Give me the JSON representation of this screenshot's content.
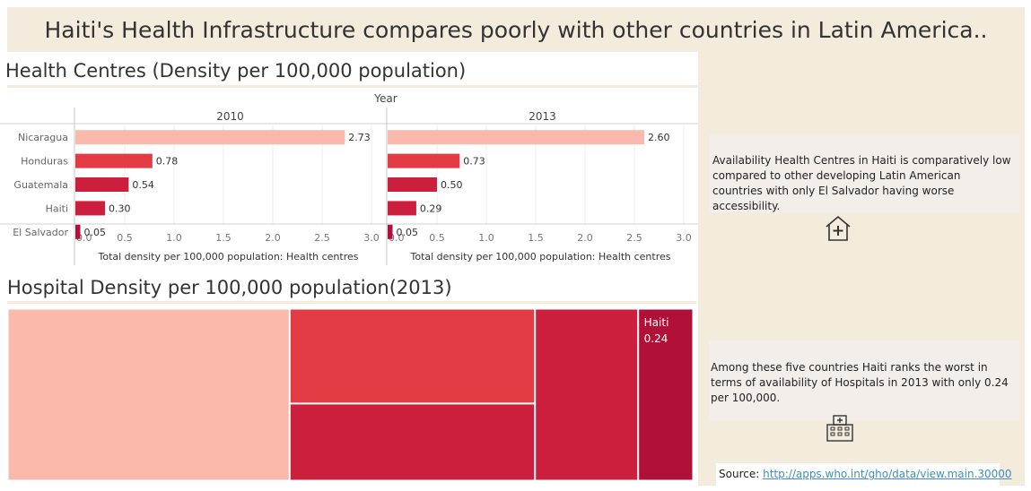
{
  "title": "Haiti's Health Infrastructure compares poorly with other countries in Latin America..",
  "health_centres": {
    "heading": "Health Centres (Density per 100,000 population)",
    "column_header": "Year"
  },
  "hospital": {
    "heading": "Hospital Density per 100,000 population(2013)"
  },
  "notes": {
    "health_centres": "Availability Health Centres in Haiti is comparatively low compared to other developing Latin American countries with only El Salvador having worse accessibility.",
    "hospitals": "Among these five countries Haiti ranks the worst in terms of availability of Hospitals in 2013 with only 0.24 per 100,000."
  },
  "source": {
    "label": "Source:",
    "url_text": "http://apps.who.int/gho/data/view.main.30000"
  },
  "icons": {
    "health_centre": "house-plus-icon",
    "hospital": "hospital-building-icon"
  },
  "colors": {
    "palette": [
      "#fbb9ab",
      "#e33b43",
      "#cb1f3d",
      "#b11038"
    ],
    "panel": "#f3ebdc"
  },
  "chart_data": [
    {
      "type": "bar",
      "orientation": "horizontal",
      "categories": [
        "Nicaragua",
        "Honduras",
        "Guatemala",
        "Haiti",
        "El Salvador"
      ],
      "facet_label": "Year",
      "panels": [
        {
          "name": "2010",
          "values": [
            2.73,
            0.78,
            0.54,
            0.3,
            0.05
          ],
          "labels": [
            "2.73",
            "0.78",
            "0.54",
            "0.30",
            "0.05"
          ]
        },
        {
          "name": "2013",
          "values": [
            2.6,
            0.73,
            0.5,
            0.29,
            0.05
          ],
          "labels": [
            "2.60",
            "0.73",
            "0.50",
            "0.29",
            "0.05"
          ]
        }
      ],
      "xlabel": "Total density per 100,000 population: Health centres",
      "xlim": [
        0,
        3.0
      ],
      "ticks": [
        "0.0",
        "0.5",
        "1.0",
        "1.5",
        "2.0",
        "2.5",
        "3.0"
      ],
      "grid": true
    },
    {
      "type": "treemap",
      "title": "Hospital Density per 100,000 population(2013)",
      "values": [
        1.23,
        0.59,
        0.48,
        0.45,
        0.24
      ],
      "labeled": [
        {
          "name": "Haiti",
          "value": "0.24"
        }
      ]
    }
  ]
}
